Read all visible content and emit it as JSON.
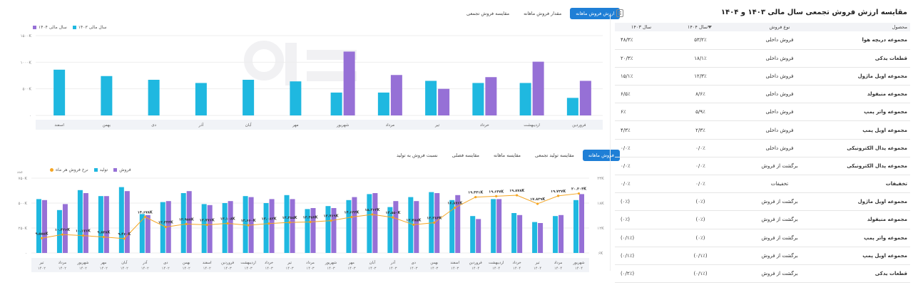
{
  "table": {
    "title": "مقایسه ارزش فروش تجمعی سال مالی ۱۴۰۳ و ۱۴۰۴",
    "headers": {
      "product": "محصول",
      "sale_type": "نوع فروش",
      "y1404": "سال ۱۴۰۴",
      "y1403": "سال ۱۴۰۳"
    },
    "rows": [
      {
        "product": "مجموعه دریچه هوا",
        "type": "فروش داخلی",
        "v1404": "۵۳/۲٪",
        "v1403": "۴۸/۳٪"
      },
      {
        "product": "قطعات یدکی",
        "type": "فروش داخلی",
        "v1404": "۱۸/۱٪",
        "v1403": "۲۰/۳٪"
      },
      {
        "product": "مجموعه اویل ماژول",
        "type": "فروش داخلی",
        "v1404": "۱۲/۳٪",
        "v1403": "۱۵/۱٪"
      },
      {
        "product": "مجموعه منیفولد",
        "type": "فروش داخلی",
        "v1404": "۸/۶٪",
        "v1403": "۶/۵٪"
      },
      {
        "product": "مجموعه واتر پمپ",
        "type": "فروش داخلی",
        "v1404": "۵/۹٪",
        "v1403": "۶٪"
      },
      {
        "product": "مجموعه اویل پمپ",
        "type": "فروش داخلی",
        "v1404": "۲/۳٪",
        "v1403": "۴/۳٪"
      },
      {
        "product": "مجموعه پدال الکترونیکی",
        "type": "فروش داخلی",
        "v1404": "۰/۰٪",
        "v1403": "۰/۰٪"
      },
      {
        "product": "مجموعه پدال الکترونیکی",
        "type": "برگشت از فروش",
        "v1404": "۰/۰٪",
        "v1403": "۰/۰٪"
      },
      {
        "product": "تخفیفات",
        "type": "تخفیفات",
        "v1404": "۰/۰٪",
        "v1403": "۰/۰٪"
      },
      {
        "product": "مجموعه اویل ماژول",
        "type": "برگشت از فروش",
        "v1404": "(۰٪)",
        "v1403": "(۰٪)"
      },
      {
        "product": "مجموعه منیفولد",
        "type": "برگشت از فروش",
        "v1404": "(۰٪)",
        "v1403": "(۰٪)"
      },
      {
        "product": "مجموعه واتر پمپ",
        "type": "برگشت از فروش",
        "v1404": "(۰٪)",
        "v1403": "(۰/۱٪)"
      },
      {
        "product": "مجموعه اویل پمپ",
        "type": "برگشت از فروش",
        "v1404": "(۰/۱٪)",
        "v1403": "(۰/۱٪)"
      },
      {
        "product": "قطعات یدکی",
        "type": "برگشت از فروش",
        "v1404": "(۰/۱٪)",
        "v1403": "(۰/۲٪)"
      }
    ]
  },
  "top_tabs": [
    "ارزش فروش ماهانه",
    "مقدار فروش ماهانه",
    "مقایسه فروش تجمعی"
  ],
  "bottom_tabs": [
    "فروش ماهانه",
    "مقایسه تولید تجمعی",
    "مقایسه ماهانه",
    "مقایسه فصلی",
    "نسبت فروش به تولید"
  ],
  "colors": {
    "primary": "#1f7fd6",
    "cyan": "#1fb8e0",
    "purple": "#9670d6",
    "orange": "#f5a623"
  },
  "chart_data": [
    {
      "type": "bar",
      "legend": [
        "سال مالی ۱۴۰۴",
        "سال مالی ۱۴۰۳"
      ],
      "y_ticks": [
        "۱۵۰۰K",
        "۱۰۰۰K",
        "۵۰۰K",
        "۰"
      ],
      "ylim": [
        0,
        1500
      ],
      "categories": [
        "فروردین",
        "اردیبهشت",
        "خرداد",
        "تیر",
        "مرداد",
        "شهریور",
        "مهر",
        "آبان",
        "آذر",
        "دی",
        "بهمن",
        "اسفند"
      ],
      "series": [
        {
          "name": "سال مالی ۱۴۰۳",
          "values": [
            330,
            610,
            610,
            650,
            430,
            430,
            640,
            670,
            610,
            670,
            740,
            860
          ]
        },
        {
          "name": "سال مالی ۱۴۰۴",
          "values": [
            650,
            1010,
            720,
            500,
            760,
            1200,
            null,
            null,
            null,
            null,
            null,
            null
          ]
        }
      ]
    },
    {
      "type": "bar",
      "legend": [
        "فروش",
        "تولید",
        "نرخ فروش هر ماه"
      ],
      "y_left_label": "عدد",
      "y_left_ticks": [
        "۷۵۰K",
        "۵۰۰K",
        "۲۵۰K",
        "۰"
      ],
      "y_left_lim": [
        0,
        750
      ],
      "y_right_ticks": [
        "۲۴K",
        "۱۸K",
        "۱۲K",
        "۶K"
      ],
      "y_right_lim": [
        6,
        24
      ],
      "categories": [
        [
          "تیر",
          "۱۴۰۲"
        ],
        [
          "مرداد",
          "۱۴۰۲"
        ],
        [
          "شهریور",
          "۱۴۰۲"
        ],
        [
          "مهر",
          "۱۴۰۲"
        ],
        [
          "آبان",
          "۱۴۰۲"
        ],
        [
          "آذر",
          "۱۴۰۲"
        ],
        [
          "دی",
          "۱۴۰۲"
        ],
        [
          "بهمن",
          "۱۴۰۲"
        ],
        [
          "اسفند",
          "۱۴۰۲"
        ],
        [
          "فروردین",
          "۱۴۰۳"
        ],
        [
          "اردیبهشت",
          "۱۴۰۳"
        ],
        [
          "خرداد",
          "۱۴۰۳"
        ],
        [
          "تیر",
          "۱۴۰۳"
        ],
        [
          "مرداد",
          "۱۴۰۳"
        ],
        [
          "شهریور",
          "۱۴۰۳"
        ],
        [
          "مهر",
          "۱۴۰۳"
        ],
        [
          "آبان",
          "۱۴۰۳"
        ],
        [
          "آذر",
          "۱۴۰۳"
        ],
        [
          "دی",
          "۱۴۰۳"
        ],
        [
          "بهمن",
          "۱۴۰۳"
        ],
        [
          "اسفند",
          "۱۴۰۳"
        ],
        [
          "فروردین",
          "۱۴۰۴"
        ],
        [
          "اردیبهشت",
          "۱۴۰۴"
        ],
        [
          "خرداد",
          "۱۴۰۴"
        ],
        [
          "تیر",
          "۱۴۰۴"
        ],
        [
          "مرداد",
          "۱۴۰۴"
        ],
        [
          "شهریور",
          "۱۴۰۴"
        ]
      ],
      "series": [
        {
          "name": "تولید",
          "values": [
            540,
            430,
            630,
            570,
            660,
            390,
            510,
            600,
            490,
            500,
            570,
            500,
            580,
            440,
            470,
            530,
            590,
            460,
            560,
            610,
            530,
            370,
            540,
            400,
            310,
            370,
            530
          ]
        },
        {
          "name": "فروش",
          "values": [
            530,
            490,
            600,
            570,
            620,
            380,
            520,
            620,
            480,
            520,
            560,
            540,
            540,
            450,
            450,
            560,
            600,
            520,
            520,
            600,
            580,
            340,
            540,
            380,
            300,
            380,
            590
          ]
        }
      ],
      "rate_labels": [
        "۹.۵۵۵K",
        "۱۰.۴۲۶K",
        "۱۰.۱۷۶K",
        "۹.۸۳۸K",
        "۹.۴۶۰K",
        "۱۴.۶۷۸K",
        "۱۲.۲۴۴K",
        "۱۲.۹۵۸K",
        "۱۲.۷۷۶K",
        "۱۳.۱۰۸K",
        "۱۲.۶۶۰K",
        "۱۳.۰۸۲K",
        "۱۳.۳۵۵K",
        "۱۳.۴۵۷K",
        "۱۳.۷۶۹K",
        "۱۴.۶۴۴K",
        "۱۵.۲۶۴K",
        "۱۴.۵۵۰K",
        "۱۲.۷۸۵K",
        "۱۳.۲۸۴K",
        "۱۶.۸۷۶K",
        "۱۹.۴۴۱K",
        "۱۹.۶۴۷K",
        "۱۹.۸۷۸K",
        "۱۷.۸۲۹K",
        "۱۹.۷۳۷K",
        "۲۰.۳۰۴K"
      ],
      "rate": [
        9.555,
        10.426,
        10.176,
        9.838,
        9.46,
        14.678,
        12.244,
        12.958,
        12.776,
        13.108,
        12.66,
        13.082,
        13.355,
        13.457,
        13.769,
        14.644,
        15.264,
        14.55,
        12.785,
        13.284,
        16.876,
        19.441,
        19.647,
        19.878,
        17.829,
        19.737,
        20.304
      ]
    }
  ]
}
